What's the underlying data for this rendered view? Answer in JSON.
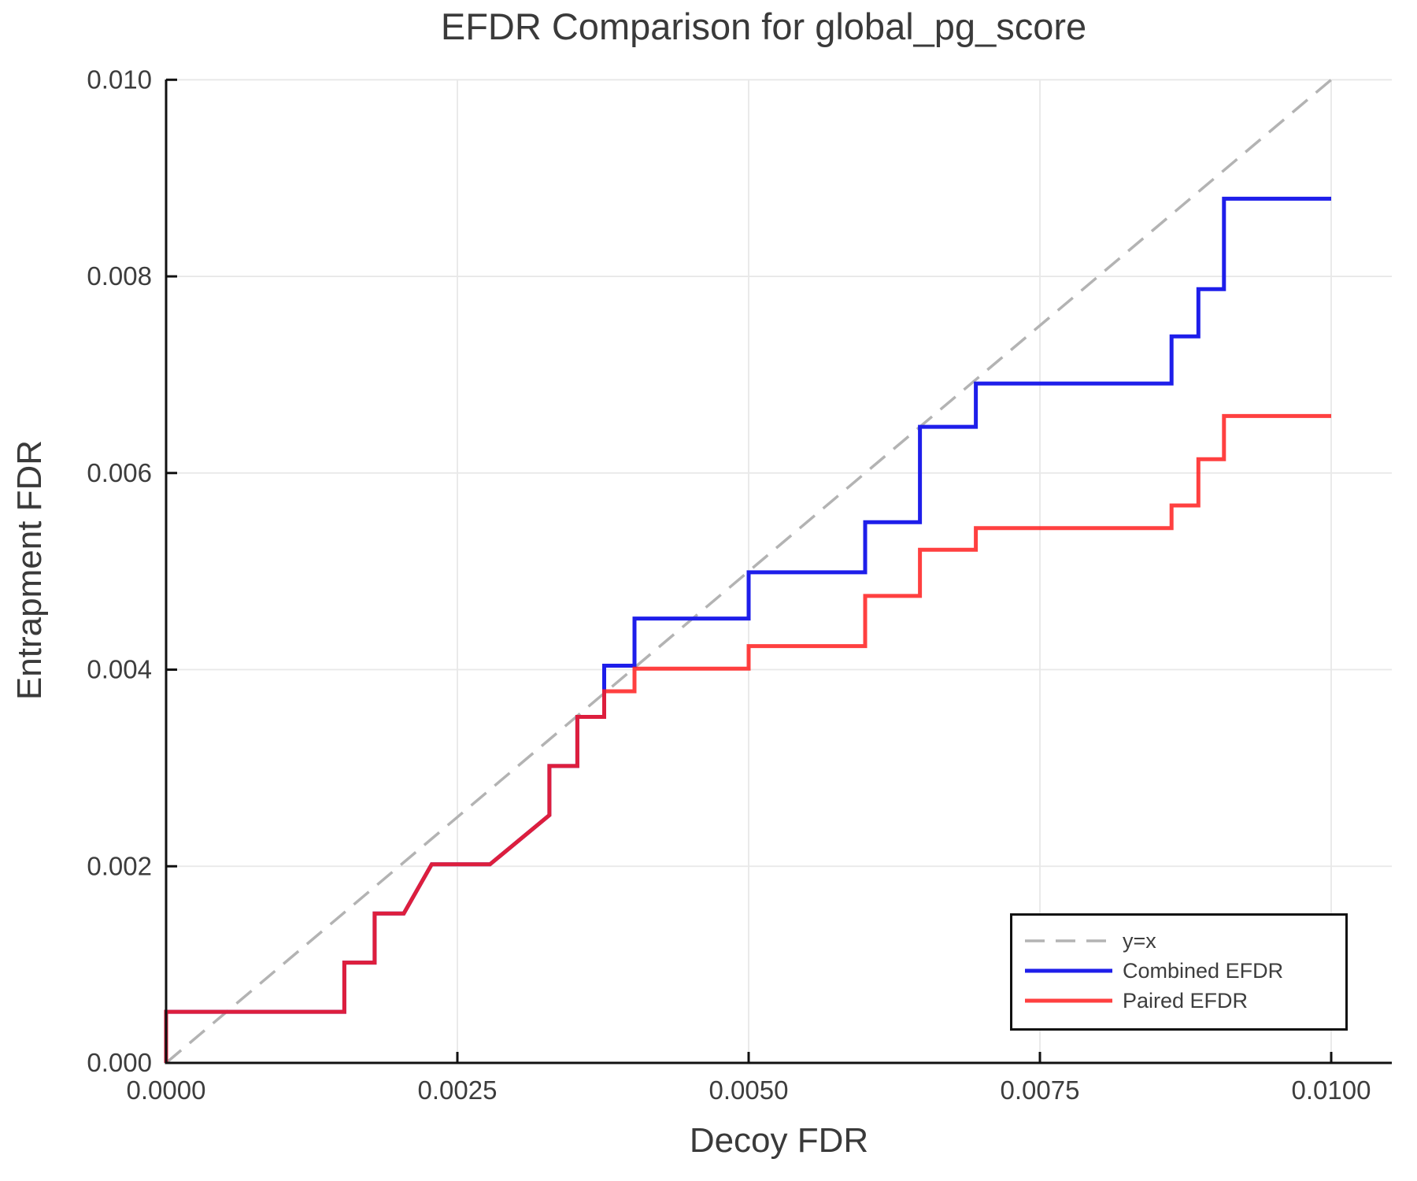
{
  "chart_data": {
    "type": "line",
    "title": "EFDR Comparison for global_pg_score",
    "xlabel": "Decoy FDR",
    "ylabel": "Entrapment FDR",
    "xlim": [
      0.0,
      0.01052
    ],
    "ylim": [
      0.0,
      0.01
    ],
    "grid": true,
    "legend_position": "lower right",
    "xticks": {
      "values": [
        0.0,
        0.0025,
        0.005,
        0.0075,
        0.01
      ],
      "labels": [
        "0.0000",
        "0.0025",
        "0.0050",
        "0.0075",
        "0.0100"
      ]
    },
    "yticks": {
      "values": [
        0.0,
        0.002,
        0.004,
        0.006,
        0.008,
        0.01
      ],
      "labels": [
        "0.000",
        "0.002",
        "0.004",
        "0.006",
        "0.008",
        "0.010"
      ]
    },
    "series": [
      {
        "name": "y=x",
        "style": "dashed",
        "color": "#b3b3b3",
        "width": 3.5,
        "opacity": 1,
        "points": [
          [
            0.0,
            0.0
          ],
          [
            0.01,
            0.01
          ]
        ]
      },
      {
        "name": "Combined EFDR",
        "style": "solid",
        "color": "#1e1eea",
        "width": 5,
        "opacity": 1,
        "points": [
          [
            0.0,
            0.0
          ],
          [
            0.0,
            0.00052
          ],
          [
            0.00153,
            0.00052
          ],
          [
            0.00153,
            0.00102
          ],
          [
            0.00179,
            0.00102
          ],
          [
            0.00179,
            0.00152
          ],
          [
            0.00204,
            0.00152
          ],
          [
            0.00228,
            0.00202
          ],
          [
            0.00278,
            0.00202
          ],
          [
            0.00329,
            0.00252
          ],
          [
            0.00329,
            0.00302
          ],
          [
            0.00353,
            0.00302
          ],
          [
            0.00353,
            0.00352
          ],
          [
            0.00376,
            0.00352
          ],
          [
            0.00376,
            0.00404
          ],
          [
            0.00402,
            0.00404
          ],
          [
            0.00402,
            0.00452
          ],
          [
            0.005,
            0.00452
          ],
          [
            0.005,
            0.00499
          ],
          [
            0.006,
            0.00499
          ],
          [
            0.006,
            0.0055
          ],
          [
            0.00647,
            0.0055
          ],
          [
            0.00647,
            0.00647
          ],
          [
            0.00695,
            0.00647
          ],
          [
            0.00695,
            0.00691
          ],
          [
            0.00863,
            0.00691
          ],
          [
            0.00863,
            0.00739
          ],
          [
            0.00886,
            0.00739
          ],
          [
            0.00886,
            0.00787
          ],
          [
            0.00908,
            0.00787
          ],
          [
            0.00908,
            0.00879
          ],
          [
            0.01,
            0.00879
          ]
        ]
      },
      {
        "name": "Paired EFDR",
        "style": "solid",
        "color": "#ff1f1f",
        "width": 5,
        "opacity": 0.85,
        "points": [
          [
            0.0,
            0.0
          ],
          [
            0.0,
            0.00052
          ],
          [
            0.00153,
            0.00052
          ],
          [
            0.00153,
            0.00102
          ],
          [
            0.00179,
            0.00102
          ],
          [
            0.00179,
            0.00152
          ],
          [
            0.00204,
            0.00152
          ],
          [
            0.00228,
            0.00202
          ],
          [
            0.00278,
            0.00202
          ],
          [
            0.00329,
            0.00252
          ],
          [
            0.00329,
            0.00302
          ],
          [
            0.00353,
            0.00302
          ],
          [
            0.00353,
            0.00352
          ],
          [
            0.00376,
            0.00352
          ],
          [
            0.00376,
            0.00378
          ],
          [
            0.00402,
            0.00378
          ],
          [
            0.00402,
            0.00401
          ],
          [
            0.005,
            0.00401
          ],
          [
            0.005,
            0.00424
          ],
          [
            0.006,
            0.00424
          ],
          [
            0.006,
            0.00475
          ],
          [
            0.00647,
            0.00475
          ],
          [
            0.00647,
            0.00522
          ],
          [
            0.00695,
            0.00522
          ],
          [
            0.00695,
            0.00544
          ],
          [
            0.00863,
            0.00544
          ],
          [
            0.00863,
            0.00567
          ],
          [
            0.00886,
            0.00567
          ],
          [
            0.00886,
            0.00614
          ],
          [
            0.00908,
            0.00614
          ],
          [
            0.00908,
            0.00658
          ],
          [
            0.01,
            0.00658
          ]
        ]
      }
    ],
    "colors": {
      "grid": "#e8e8e8",
      "spine": "#111111",
      "tick_label": "#3d3d3d",
      "text": "#3a3a3a",
      "background": "#ffffff"
    }
  },
  "legend": {
    "items": [
      {
        "label": "y=x"
      },
      {
        "label": "Combined EFDR"
      },
      {
        "label": "Paired EFDR"
      }
    ]
  }
}
